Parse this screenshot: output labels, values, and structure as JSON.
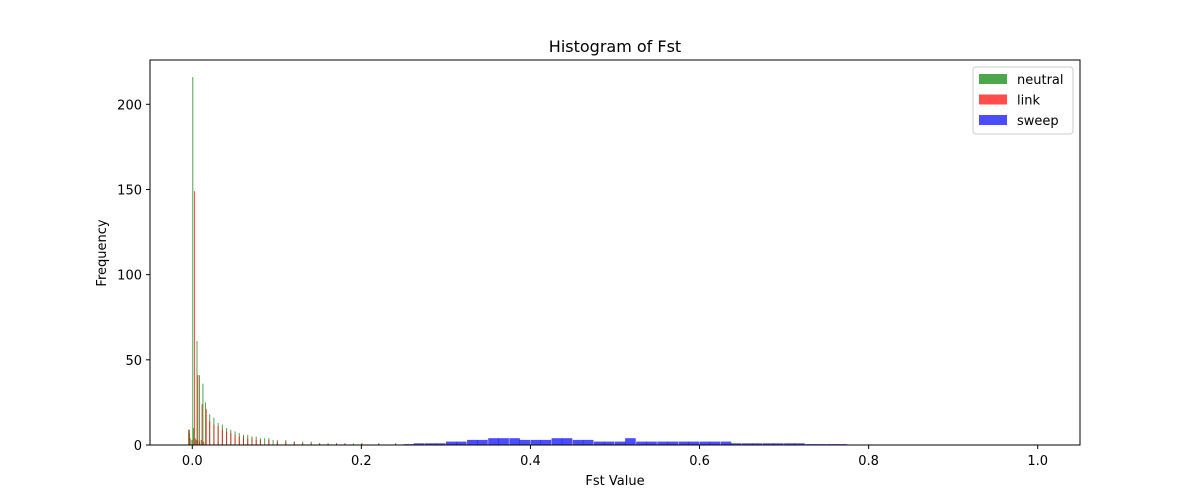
{
  "chart_data": {
    "type": "bar",
    "title": "Histogram of Fst",
    "xlabel": "Fst Value",
    "ylabel": "Frequency",
    "xlim": [
      -0.05,
      1.05
    ],
    "ylim": [
      0,
      226
    ],
    "x_ticks": [
      {
        "value": 0.0,
        "label": "0.0"
      },
      {
        "value": 0.2,
        "label": "0.2"
      },
      {
        "value": 0.4,
        "label": "0.4"
      },
      {
        "value": 0.6,
        "label": "0.6"
      },
      {
        "value": 0.8,
        "label": "0.8"
      },
      {
        "value": 1.0,
        "label": "1.0"
      }
    ],
    "y_ticks": [
      {
        "value": 0,
        "label": "0"
      },
      {
        "value": 50,
        "label": "50"
      },
      {
        "value": 100,
        "label": "100"
      },
      {
        "value": 150,
        "label": "150"
      },
      {
        "value": 200,
        "label": "200"
      }
    ],
    "legend_position": "top-right",
    "series": [
      {
        "name": "neutral",
        "color": "#008000",
        "bin_width": 0.0006,
        "bins": [
          [
            -0.005,
            9
          ],
          [
            -0.004,
            7
          ],
          [
            -0.003,
            4
          ],
          [
            0.0,
            216
          ],
          [
            0.001,
            10
          ],
          [
            0.003,
            4
          ],
          [
            0.005,
            61
          ],
          [
            0.006,
            3
          ],
          [
            0.008,
            41
          ],
          [
            0.01,
            3
          ],
          [
            0.012,
            36
          ],
          [
            0.015,
            25
          ],
          [
            0.02,
            18
          ],
          [
            0.025,
            16
          ],
          [
            0.03,
            13
          ],
          [
            0.035,
            12
          ],
          [
            0.04,
            10
          ],
          [
            0.045,
            9
          ],
          [
            0.05,
            8
          ],
          [
            0.055,
            7
          ],
          [
            0.06,
            6
          ],
          [
            0.065,
            6
          ],
          [
            0.07,
            5
          ],
          [
            0.075,
            5
          ],
          [
            0.08,
            4
          ],
          [
            0.085,
            4
          ],
          [
            0.09,
            4
          ],
          [
            0.095,
            3
          ],
          [
            0.1,
            3
          ],
          [
            0.11,
            3
          ],
          [
            0.12,
            2
          ],
          [
            0.13,
            2
          ],
          [
            0.14,
            2
          ],
          [
            0.15,
            1
          ],
          [
            0.16,
            1
          ],
          [
            0.17,
            1
          ],
          [
            0.18,
            1
          ],
          [
            0.19,
            1
          ],
          [
            0.2,
            1
          ],
          [
            0.22,
            1
          ],
          [
            0.24,
            1
          ]
        ]
      },
      {
        "name": "link",
        "color": "#ff0000",
        "bin_width": 0.0012,
        "bins": [
          [
            -0.004,
            9
          ],
          [
            -0.001,
            3
          ],
          [
            0.002,
            149
          ],
          [
            0.004,
            3
          ],
          [
            0.006,
            41
          ],
          [
            0.008,
            2
          ],
          [
            0.011,
            24
          ],
          [
            0.013,
            2
          ],
          [
            0.016,
            21
          ],
          [
            0.02,
            14
          ],
          [
            0.025,
            12
          ],
          [
            0.03,
            11
          ],
          [
            0.035,
            9
          ],
          [
            0.04,
            8
          ],
          [
            0.045,
            7
          ],
          [
            0.05,
            6
          ],
          [
            0.055,
            5
          ],
          [
            0.06,
            5
          ],
          [
            0.065,
            4
          ],
          [
            0.07,
            4
          ],
          [
            0.075,
            3
          ],
          [
            0.08,
            3
          ],
          [
            0.09,
            3
          ],
          [
            0.1,
            2
          ],
          [
            0.11,
            2
          ],
          [
            0.12,
            2
          ],
          [
            0.13,
            1
          ],
          [
            0.14,
            1
          ],
          [
            0.15,
            1
          ],
          [
            0.16,
            1
          ],
          [
            0.17,
            1
          ],
          [
            0.18,
            1
          ],
          [
            0.2,
            1
          ],
          [
            0.22,
            1
          ],
          [
            0.24,
            1
          ]
        ]
      },
      {
        "name": "sweep",
        "color": "#0000ff",
        "bin_width": 0.0125,
        "bins": [
          [
            0.25,
            0.5
          ],
          [
            0.262,
            1
          ],
          [
            0.275,
            1
          ],
          [
            0.287,
            1
          ],
          [
            0.3,
            2
          ],
          [
            0.312,
            2
          ],
          [
            0.325,
            3
          ],
          [
            0.337,
            3
          ],
          [
            0.35,
            4
          ],
          [
            0.362,
            4
          ],
          [
            0.375,
            4
          ],
          [
            0.387,
            3
          ],
          [
            0.4,
            3
          ],
          [
            0.412,
            3
          ],
          [
            0.425,
            4
          ],
          [
            0.437,
            4
          ],
          [
            0.45,
            3
          ],
          [
            0.462,
            3
          ],
          [
            0.475,
            2
          ],
          [
            0.487,
            2
          ],
          [
            0.5,
            2
          ],
          [
            0.512,
            4
          ],
          [
            0.525,
            2
          ],
          [
            0.537,
            2
          ],
          [
            0.55,
            2
          ],
          [
            0.562,
            2
          ],
          [
            0.575,
            2
          ],
          [
            0.587,
            2
          ],
          [
            0.6,
            2
          ],
          [
            0.612,
            2
          ],
          [
            0.625,
            2
          ],
          [
            0.637,
            1
          ],
          [
            0.65,
            1
          ],
          [
            0.662,
            1
          ],
          [
            0.675,
            1
          ],
          [
            0.687,
            1
          ],
          [
            0.7,
            1
          ],
          [
            0.712,
            1
          ],
          [
            0.725,
            0.5
          ],
          [
            0.737,
            0.5
          ],
          [
            0.75,
            0.5
          ],
          [
            0.762,
            0.5
          ]
        ]
      }
    ]
  }
}
